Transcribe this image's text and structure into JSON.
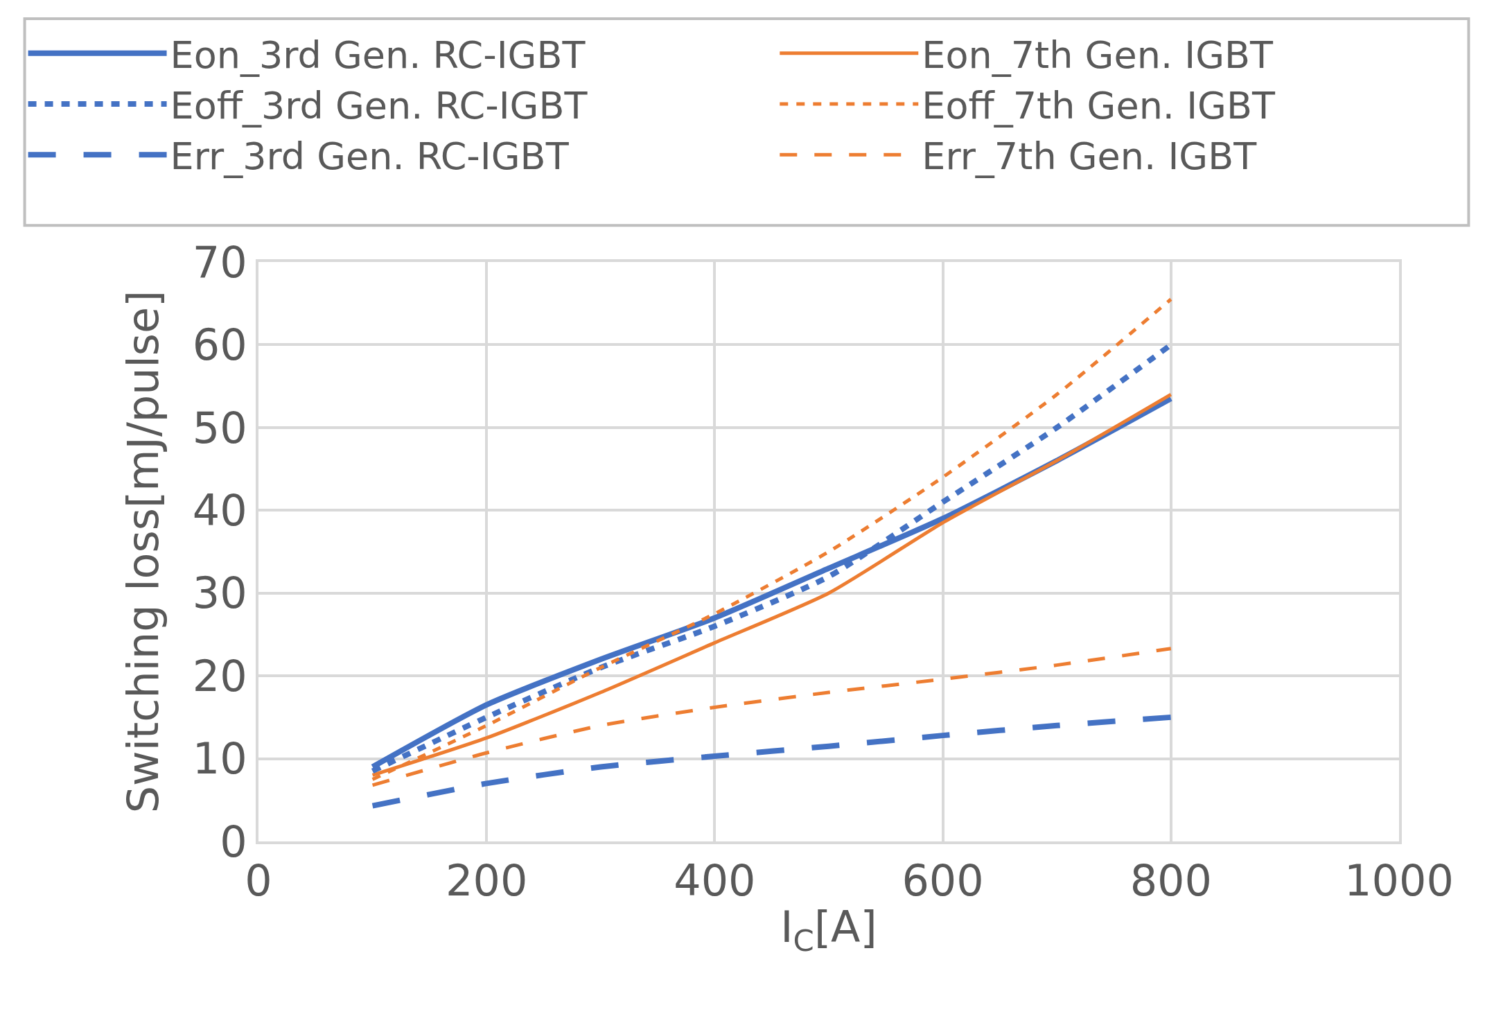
{
  "chart_data": {
    "type": "line",
    "xlabel": "I$_{C}$[A]",
    "ylabel": "Switching loss[mJ/pulse]",
    "x": [
      100,
      200,
      300,
      400,
      500,
      600,
      700,
      800
    ],
    "series": [
      {
        "name": "Eon_3rd Gen. RC-IGBT",
        "color": "#4472c4",
        "line_style": "solid",
        "values": [
          9,
          16.5,
          22,
          27,
          33,
          39,
          46,
          53.5
        ]
      },
      {
        "name": "Eon_7th Gen. IGBT",
        "color": "#ed7d31",
        "line_style": "solid",
        "values": [
          8,
          12.5,
          18,
          24,
          30,
          38.5,
          46,
          54
        ]
      },
      {
        "name": "Eoff_3rd Gen. RC-IGBT",
        "color": "#4472c4",
        "line_style": "dotted",
        "values": [
          8.5,
          15,
          21,
          26,
          32,
          41,
          50,
          60
        ]
      },
      {
        "name": "Eoff_7th Gen. IGBT",
        "color": "#ed7d31",
        "line_style": "dotted",
        "values": [
          7.5,
          14,
          21,
          27.5,
          35,
          44,
          54,
          65.5
        ]
      },
      {
        "name": "Err_3rd Gen. RC-IGBT",
        "color": "#4472c4",
        "line_style": "dashed",
        "values": [
          4.3,
          7,
          9,
          10.3,
          11.5,
          12.8,
          14,
          15
        ]
      },
      {
        "name": "Err_7th Gen. IGBT",
        "color": "#ed7d31",
        "line_style": "dashed",
        "values": [
          6.8,
          10.7,
          14,
          16.2,
          18,
          19.6,
          21.3,
          23.3
        ]
      }
    ],
    "xlim": [
      0,
      1000
    ],
    "xticks": [
      0,
      200,
      400,
      600,
      800,
      1000
    ],
    "ylim": [
      0,
      70
    ],
    "yticks": [
      0,
      10,
      20,
      30,
      40,
      50,
      60,
      70
    ],
    "grid": true,
    "legend": "top",
    "marker": "none"
  }
}
